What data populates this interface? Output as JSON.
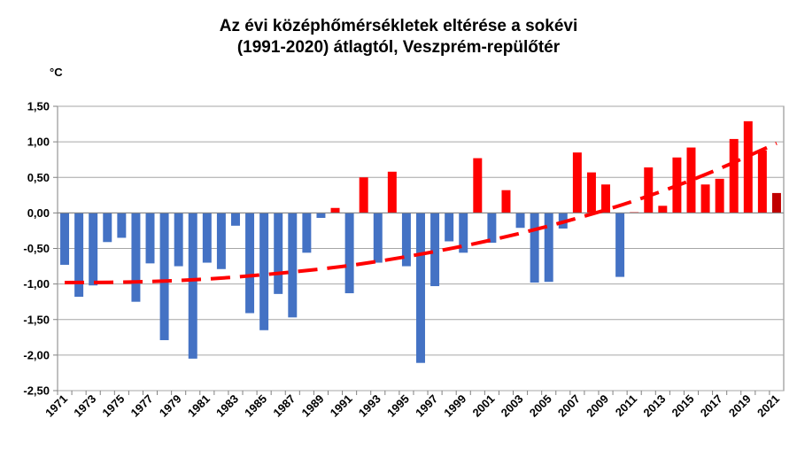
{
  "chart_data": {
    "type": "bar",
    "title_line1": "Az évi középhőmérsékletek eltérése a sokévi",
    "title_line2": "(1991-2020) átlagtól, Veszprém-repülőtér",
    "ylabel": "°C",
    "xlabel": "",
    "ylim": [
      -2.5,
      1.5
    ],
    "y_ticks": [
      "1,50",
      "1,00",
      "0,50",
      "0,00",
      "-0,50",
      "-1,00",
      "-1,50",
      "-2,00",
      "-2,50"
    ],
    "y_tick_values": [
      1.5,
      1.0,
      0.5,
      0.0,
      -0.5,
      -1.0,
      -1.5,
      -2.0,
      -2.5
    ],
    "x_tick_labels": [
      "1971",
      "1973",
      "1975",
      "1977",
      "1979",
      "1981",
      "1983",
      "1985",
      "1987",
      "1989",
      "1991",
      "1993",
      "1995",
      "1997",
      "1999",
      "2001",
      "2003",
      "2005",
      "2007",
      "2009",
      "2011",
      "2013",
      "2015",
      "2017",
      "2019",
      "2021"
    ],
    "categories": [
      1971,
      1972,
      1973,
      1974,
      1975,
      1976,
      1977,
      1978,
      1979,
      1980,
      1981,
      1982,
      1983,
      1984,
      1985,
      1986,
      1987,
      1988,
      1989,
      1990,
      1991,
      1992,
      1993,
      1994,
      1995,
      1996,
      1997,
      1998,
      1999,
      2000,
      2001,
      2002,
      2003,
      2004,
      2005,
      2006,
      2007,
      2008,
      2009,
      2010,
      2011,
      2012,
      2013,
      2014,
      2015,
      2016,
      2017,
      2018,
      2019,
      2020,
      2021
    ],
    "values": [
      -0.73,
      -1.18,
      -1.02,
      -0.41,
      -0.35,
      -1.25,
      -0.71,
      -1.79,
      -0.75,
      -2.05,
      -0.7,
      -0.79,
      -0.18,
      -1.41,
      -1.65,
      -1.14,
      -1.47,
      -0.56,
      -0.07,
      0.07,
      -1.13,
      0.5,
      -0.7,
      0.58,
      -0.75,
      -2.11,
      -1.03,
      -0.4,
      -0.56,
      0.77,
      -0.42,
      0.32,
      -0.21,
      -0.98,
      -0.97,
      -0.22,
      0.85,
      0.57,
      0.4,
      -0.9,
      0.01,
      0.64,
      0.1,
      0.78,
      0.92,
      0.4,
      0.48,
      1.04,
      1.29,
      0.88,
      0.28
    ],
    "colors": {
      "negative": "#4472C4",
      "positive": "#FF0000",
      "last_year": "#C00000",
      "trend": "#FF0000",
      "grid": "#A6A6A6"
    },
    "trend_line": {
      "style": "dashed",
      "x": [
        1971,
        1976,
        1981,
        1986,
        1991,
        1996,
        2001,
        2006,
        2011,
        2016,
        2021
      ],
      "y": [
        -0.98,
        -0.97,
        -0.93,
        -0.85,
        -0.74,
        -0.58,
        -0.38,
        -0.13,
        0.17,
        0.54,
        0.98
      ]
    },
    "grid": true,
    "legend": "none"
  }
}
